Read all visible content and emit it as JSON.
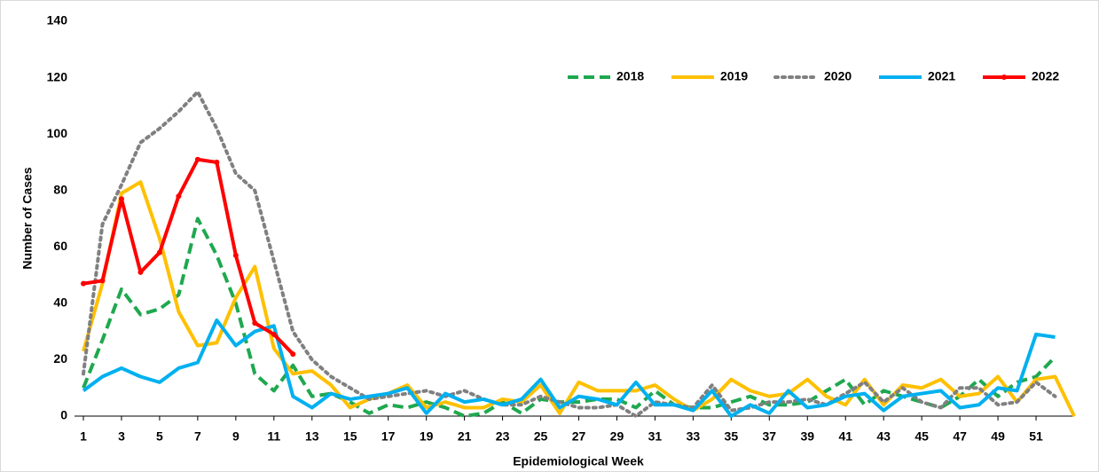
{
  "chart_data": {
    "type": "line",
    "xlabel": "Epidemiological Week",
    "ylabel": "Number of Cases",
    "x": [
      1,
      2,
      3,
      4,
      5,
      6,
      7,
      8,
      9,
      10,
      11,
      12,
      13,
      14,
      15,
      16,
      17,
      18,
      19,
      20,
      21,
      22,
      23,
      24,
      25,
      26,
      27,
      28,
      29,
      30,
      31,
      32,
      33,
      34,
      35,
      36,
      37,
      38,
      39,
      40,
      41,
      42,
      43,
      44,
      45,
      46,
      47,
      48,
      49,
      50,
      51,
      52,
      53
    ],
    "xlim": [
      1,
      53
    ],
    "xticks": [
      1,
      3,
      5,
      7,
      9,
      11,
      13,
      15,
      17,
      19,
      21,
      23,
      25,
      27,
      29,
      31,
      33,
      35,
      37,
      39,
      41,
      43,
      45,
      47,
      49,
      51
    ],
    "ylim": [
      0,
      140
    ],
    "yticks": [
      0,
      20,
      40,
      60,
      80,
      100,
      120,
      140
    ],
    "grid": false,
    "legend": "upper right",
    "series": [
      {
        "name": "2018",
        "color": "#1fa84f",
        "style": "dashed",
        "values": [
          10,
          27,
          45,
          36,
          38,
          43,
          70,
          57,
          40,
          15,
          9,
          18,
          7,
          8,
          5,
          1,
          4,
          3,
          5,
          3,
          0,
          1,
          5,
          1,
          6,
          5,
          5,
          6,
          6,
          3,
          9,
          4,
          3,
          3,
          5,
          7,
          4,
          4,
          5,
          9,
          13,
          4,
          9,
          7,
          5,
          3,
          7,
          13,
          7,
          12,
          14,
          21,
          null
        ]
      },
      {
        "name": "2019",
        "color": "#ffc000",
        "style": "solid",
        "values": [
          23,
          47,
          79,
          83,
          63,
          37,
          25,
          26,
          42,
          53,
          24,
          15,
          16,
          11,
          3,
          6,
          8,
          11,
          3,
          5,
          3,
          3,
          6,
          5,
          11,
          1,
          12,
          9,
          9,
          9,
          11,
          6,
          2,
          6,
          13,
          9,
          7,
          8,
          13,
          7,
          4,
          13,
          4,
          11,
          10,
          13,
          7,
          8,
          14,
          5,
          13,
          14,
          0
        ]
      },
      {
        "name": "2020",
        "color": "#808080",
        "style": "dotted",
        "values": [
          15,
          68,
          82,
          97,
          102,
          108,
          115,
          102,
          86,
          80,
          55,
          30,
          20,
          14,
          10,
          6,
          7,
          8,
          9,
          7,
          9,
          6,
          4,
          4,
          7,
          5,
          3,
          3,
          4,
          0,
          5,
          4,
          3,
          11,
          2,
          3,
          5,
          5,
          6,
          4,
          8,
          12,
          5,
          10,
          5,
          3,
          10,
          10,
          4,
          5,
          12,
          7,
          null
        ]
      },
      {
        "name": "2021",
        "color": "#00b0f0",
        "style": "solid",
        "values": [
          9,
          14,
          17,
          14,
          12,
          17,
          19,
          34,
          25,
          30,
          32,
          7,
          3,
          8,
          6,
          7,
          8,
          10,
          1,
          8,
          5,
          6,
          4,
          6,
          13,
          3,
          7,
          6,
          4,
          12,
          4,
          4,
          2,
          9,
          0,
          4,
          1,
          9,
          3,
          4,
          7,
          8,
          2,
          7,
          8,
          9,
          3,
          4,
          10,
          9,
          29,
          28,
          null
        ]
      },
      {
        "name": "2022",
        "color": "#ff0000",
        "style": "solid",
        "markers": true,
        "values": [
          47,
          48,
          77,
          51,
          58,
          78,
          91,
          90,
          57,
          33,
          29,
          22,
          null,
          null,
          null,
          null,
          null,
          null,
          null,
          null,
          null,
          null,
          null,
          null,
          null,
          null,
          null,
          null,
          null,
          null,
          null,
          null,
          null,
          null,
          null,
          null,
          null,
          null,
          null,
          null,
          null,
          null,
          null,
          null,
          null,
          null,
          null,
          null,
          null,
          null,
          null,
          null,
          null
        ]
      }
    ]
  }
}
